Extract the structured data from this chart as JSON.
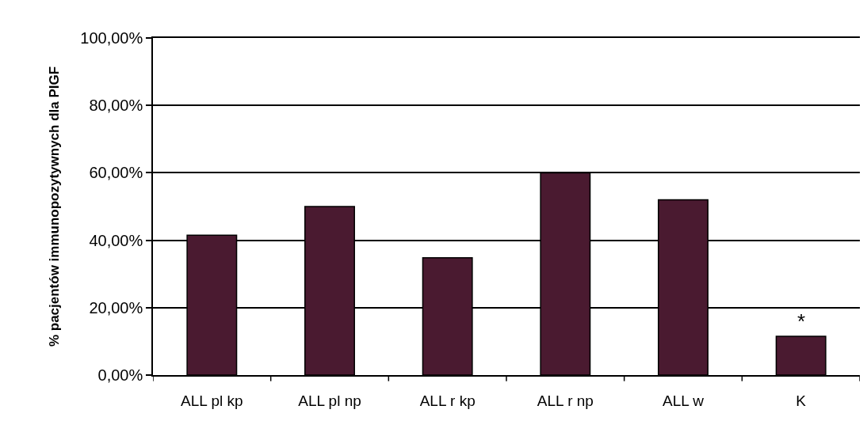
{
  "chart_data": {
    "type": "bar",
    "ylabel": "% pacjentów immunopozytywnych dla PIGF",
    "categories": [
      "ALL pl kp",
      "ALL pl np",
      "ALL r kp",
      "ALL r np",
      "ALL w",
      "K"
    ],
    "values": [
      41.5,
      50,
      34.8,
      60,
      52,
      11.5
    ],
    "color": "#4a1a30",
    "ylim": [
      0,
      100
    ],
    "yticks": [
      {
        "value": 0,
        "label": "0,00%"
      },
      {
        "value": 20,
        "label": "20,00%"
      },
      {
        "value": 40,
        "label": "40,00%"
      },
      {
        "value": 60,
        "label": "60,00%"
      },
      {
        "value": 80,
        "label": "80,00%"
      },
      {
        "value": 100,
        "label": "100,00%"
      }
    ],
    "grid": "y",
    "annotations": [
      {
        "text": "*",
        "x": "K",
        "y": 11.5
      }
    ]
  }
}
